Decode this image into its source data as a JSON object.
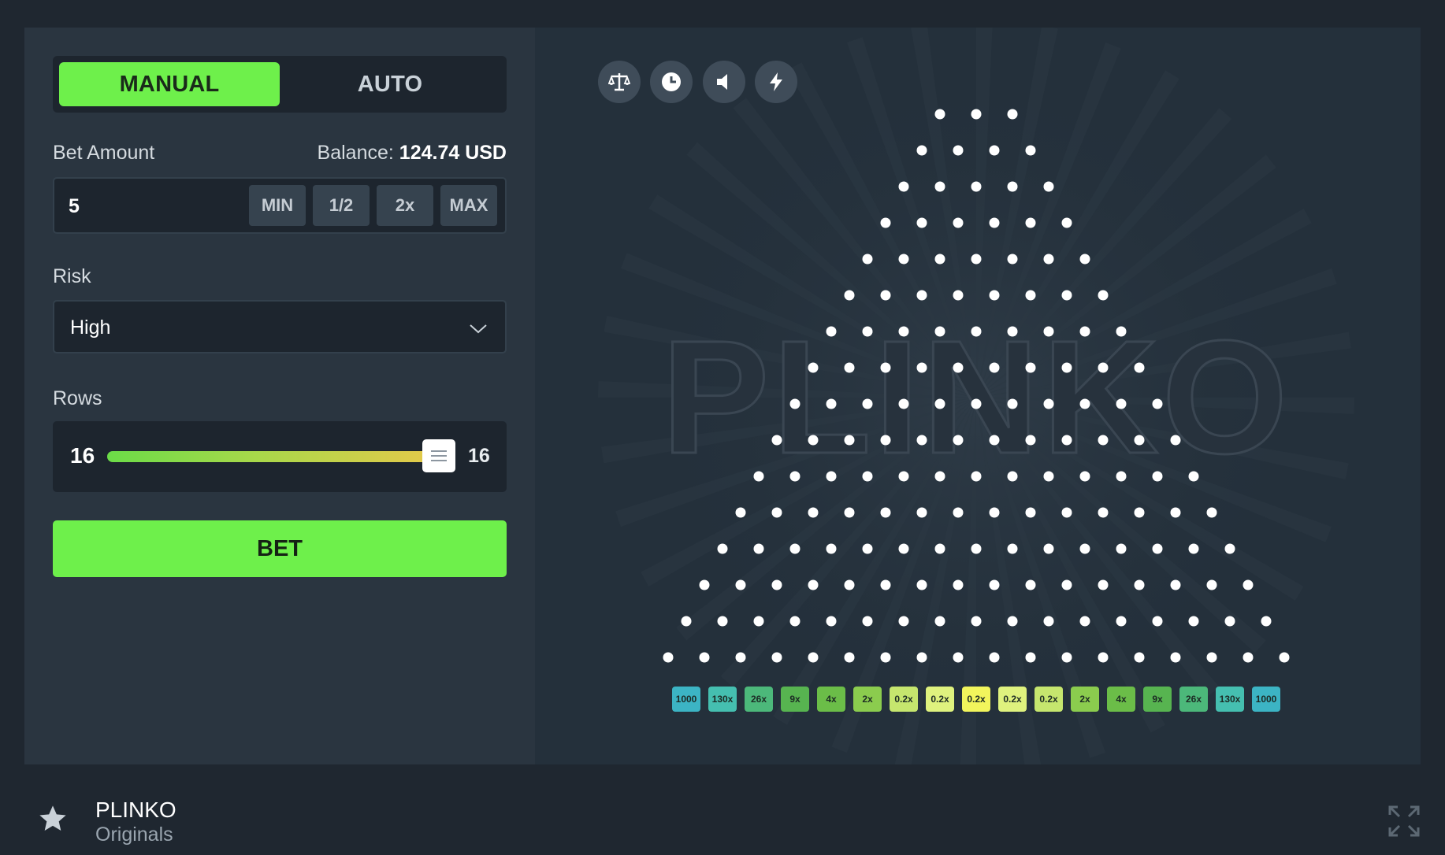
{
  "controls": {
    "mode_tabs": [
      {
        "label": "MANUAL",
        "active": true
      },
      {
        "label": "AUTO",
        "active": false
      }
    ],
    "bet_amount_label": "Bet Amount",
    "balance_label": "Balance:",
    "balance_value": "124.74 USD",
    "bet_value": "5",
    "quick_buttons": [
      "MIN",
      "1/2",
      "2x",
      "MAX"
    ],
    "risk_label": "Risk",
    "risk_value": "High",
    "rows_label": "Rows",
    "rows_value": "16",
    "rows_max": "16",
    "rows_fraction": 1.0,
    "bet_button": "BET"
  },
  "toolbar_icons": [
    "balance-scale-icon",
    "history-clock-icon",
    "sound-icon",
    "lightning-icon"
  ],
  "board": {
    "logo_text": "PLINKO",
    "peg_rows": 16,
    "multipliers": [
      "1000",
      "130x",
      "26x",
      "9x",
      "4x",
      "2x",
      "0.2x",
      "0.2x",
      "0.2x",
      "0.2x",
      "0.2x",
      "2x",
      "4x",
      "9x",
      "26x",
      "130x",
      "1000"
    ],
    "multiplier_colors": [
      "#3cb4c4",
      "#45bfb0",
      "#4cb87a",
      "#57b450",
      "#6bbd48",
      "#8bcc4e",
      "#c6e66e",
      "#dff27e",
      "#f2f55c",
      "#dff27e",
      "#c6e66e",
      "#8bcc4e",
      "#6bbd48",
      "#57b450",
      "#4cb87a",
      "#45bfb0",
      "#3cb4c4"
    ]
  },
  "footer": {
    "title": "PLINKO",
    "subtitle": "Originals"
  },
  "colors": {
    "accent": "#6ef04b",
    "panel": "#2a3540",
    "board": "#24303b",
    "page": "#1f2730"
  }
}
